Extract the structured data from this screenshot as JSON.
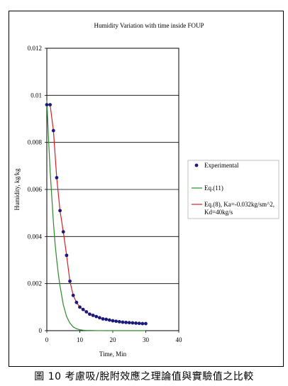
{
  "chart_data": {
    "type": "line",
    "title": "Humidity Variation with time inside FOUP",
    "xlabel": "Time, Min",
    "ylabel": "Humidity, kg/kg",
    "xlim": [
      0,
      40
    ],
    "ylim": [
      0,
      0.012
    ],
    "x_ticks": [
      "0",
      "10",
      "20",
      "30",
      "40"
    ],
    "y_ticks": [
      "0",
      "0.002",
      "0.004",
      "0.006",
      "0.008",
      "0.01",
      "0.012"
    ],
    "grid": "horizontal",
    "legend_position": "right",
    "series": [
      {
        "name": "Experimental",
        "kind": "scatter",
        "color": "#1a1a7a",
        "x": [
          0,
          1,
          2,
          3,
          4,
          5,
          6,
          7,
          8,
          9,
          10,
          11,
          12,
          13,
          14,
          15,
          16,
          17,
          18,
          19,
          20,
          21,
          22,
          23,
          24,
          25,
          26,
          27,
          28,
          29,
          30
        ],
        "y": [
          0.0096,
          0.0096,
          0.0085,
          0.0065,
          0.0051,
          0.0042,
          0.0032,
          0.0021,
          0.0015,
          0.0012,
          0.001,
          0.0009,
          0.0008,
          0.0007,
          0.00065,
          0.0006,
          0.00055,
          0.0005,
          0.00048,
          0.00045,
          0.00042,
          0.0004,
          0.00038,
          0.00036,
          0.00035,
          0.00034,
          0.00033,
          0.00032,
          0.00031,
          0.0003,
          0.0003
        ]
      },
      {
        "name": "Eq.(11)",
        "kind": "line",
        "color": "#2a8a2a",
        "x": [
          0,
          0.5,
          1,
          1.5,
          2,
          2.5,
          3,
          3.5,
          4,
          4.5,
          5,
          6,
          7,
          8,
          9,
          10,
          11,
          12,
          14,
          16,
          18,
          20,
          25,
          30
        ],
        "y": [
          0.0098,
          0.0082,
          0.0068,
          0.0057,
          0.0046,
          0.0037,
          0.003,
          0.0024,
          0.0019,
          0.0015,
          0.0011,
          0.0006,
          0.00032,
          0.00016,
          8e-05,
          4e-05,
          2e-05,
          1e-05,
          5e-06,
          2e-06,
          0,
          0,
          0,
          0
        ]
      },
      {
        "name": "Eq.(8), Ka=-0.032kg/sm^2, Kd=40kg/s",
        "kind": "line",
        "color": "#d42020",
        "x": [
          0,
          1,
          2,
          3,
          4,
          5,
          6,
          7,
          8,
          9,
          10,
          11,
          12,
          13,
          14,
          15,
          16,
          17,
          18,
          19,
          20,
          21,
          22,
          23,
          24,
          25,
          26,
          27,
          28,
          29,
          30
        ],
        "y": [
          0.0096,
          0.0096,
          0.0085,
          0.0065,
          0.0051,
          0.0042,
          0.0032,
          0.0021,
          0.0015,
          0.0012,
          0.001,
          0.0009,
          0.0008,
          0.0007,
          0.00065,
          0.0006,
          0.00055,
          0.0005,
          0.00048,
          0.00045,
          0.00042,
          0.0004,
          0.00038,
          0.00036,
          0.00035,
          0.00034,
          0.00033,
          0.00032,
          0.00031,
          0.0003,
          0.0003
        ]
      }
    ]
  },
  "legend": {
    "entries": [
      {
        "label": "Experimental"
      },
      {
        "label": "Eq.(11)"
      },
      {
        "label_line1": "Eq.(8), Ka=-0.032kg/sm^2,",
        "label_line2": "Kd=40kg/s"
      }
    ]
  },
  "caption": "圖 10 考慮吸/脫附效應之理論值與實驗值之比較"
}
